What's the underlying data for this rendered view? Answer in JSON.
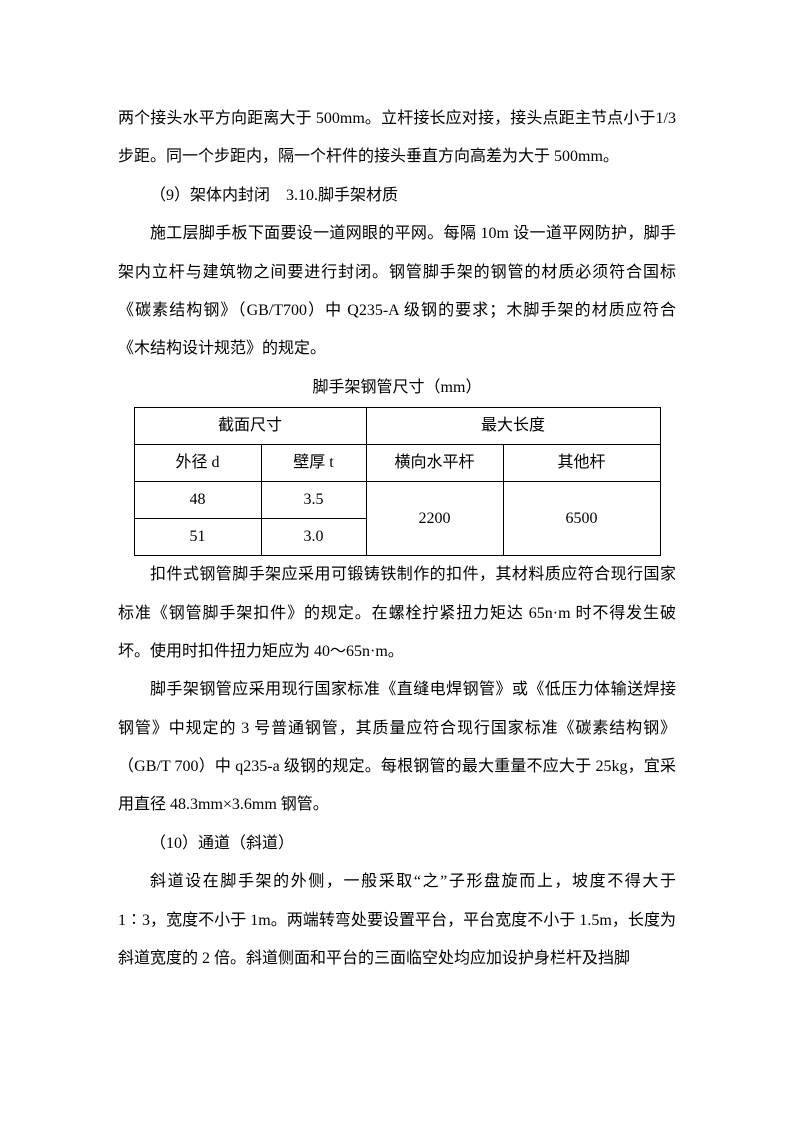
{
  "p1": "两个接头水平方向距离大于 500mm。立杆接长应对接，接头点距主节点小于1/3 步距。同一个步距内，隔一个杆件的接头垂直方向高差为大于 500mm。",
  "p2": "（9）架体内封闭　3.10.脚手架材质",
  "p3": "施工层脚手板下面要设一道网眼的平网。每隔 10m 设一道平网防护，脚手架内立杆与建筑物之间要进行封闭。钢管脚手架的钢管的材质必须符合国标《碳素结构钢》（GB/T700）中 Q235-A 级钢的要求；木脚手架的材质应符合《木结构设计规范》的规定。",
  "table_caption": "脚手架钢管尺寸（mm）",
  "table": {
    "h1": "截面尺寸",
    "h2": "最大长度",
    "sub1": "外径 d",
    "sub2": "壁厚 t",
    "sub3": "横向水平杆",
    "sub4": "其他杆",
    "r1c1": "48",
    "r1c2": "3.5",
    "r1c3": "2200",
    "r1c4": "6500",
    "r2c1": "51",
    "r2c2": "3.0"
  },
  "p4": "扣件式钢管脚手架应采用可锻铸铁制作的扣件，其材料质应符合现行国家标准《钢管脚手架扣件》的规定。在螺栓拧紧扭力矩达 65n·m 时不得发生破坏。使用时扣件扭力矩应为 40～65n·m。",
  "p5": "脚手架钢管应采用现行国家标准《直缝电焊钢管》或《低压力体输送焊接钢管》中规定的 3 号普通钢管，其质量应符合现行国家标准《碳素结构钢》（GB/T 700）中 q235-a 级钢的规定。每根钢管的最大重量不应大于 25kg，宜采用直径 48.3mm×3.6mm 钢管。",
  "p6": "（10）通道（斜道）",
  "p7": "斜道设在脚手架的外侧，一般采取“之”子形盘旋而上，坡度不得大于1∶3，宽度不小于 1m。两端转弯处要设置平台，平台宽度不小于 1.5m，长度为斜道宽度的 2 倍。斜道侧面和平台的三面临空处均应加设护身栏杆及挡脚"
}
